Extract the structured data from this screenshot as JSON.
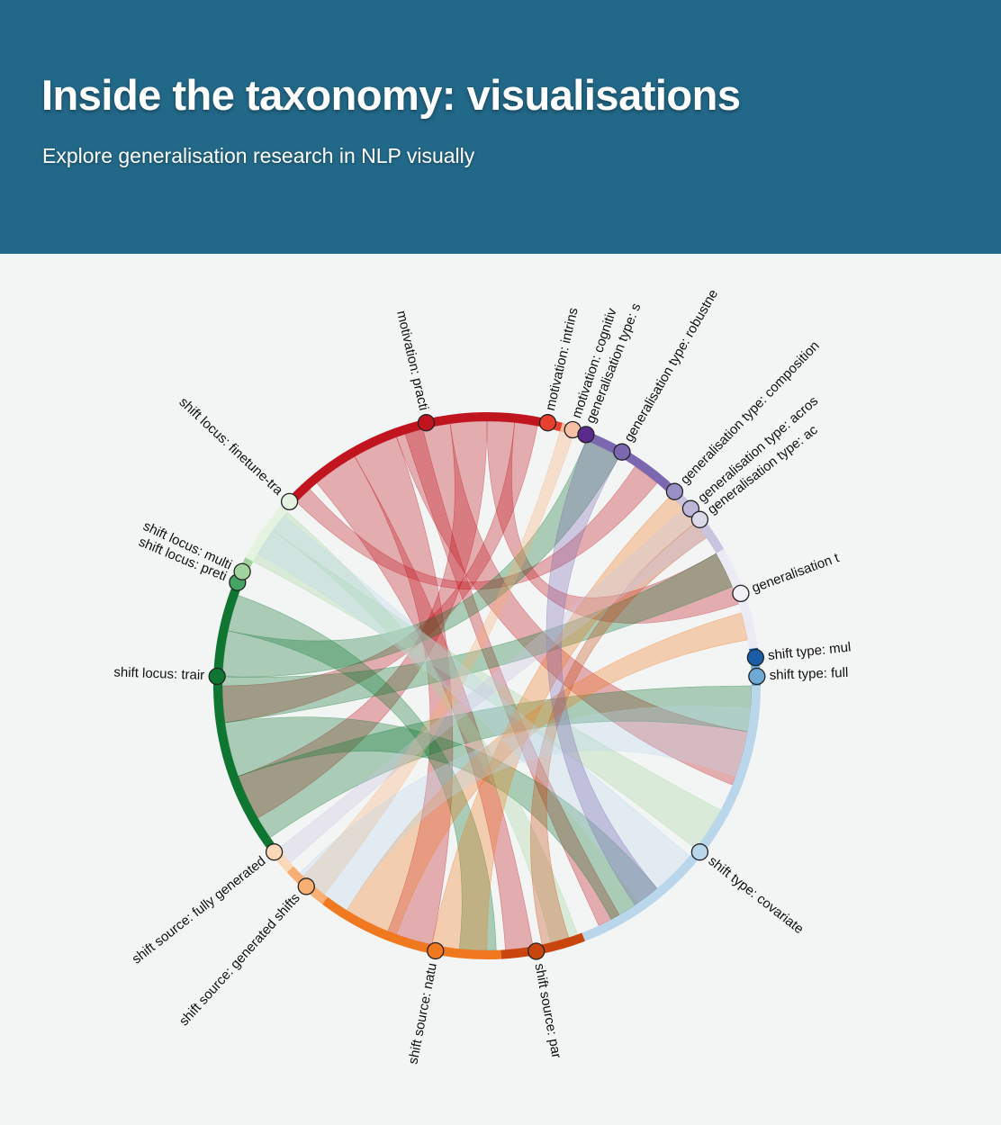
{
  "header": {
    "title": "Inside the taxonomy: visualisations",
    "subtitle": "Explore generalisation research in NLP visually"
  },
  "chord": {
    "nodes": [
      {
        "id": "practical",
        "label": "motivation: practi",
        "group": "motivation",
        "angle": -13,
        "color": "#c0151f"
      },
      {
        "id": "intrinsic",
        "label": "motivation: intrins",
        "group": "motivation",
        "angle": 13,
        "color": "#e8402e"
      },
      {
        "id": "cognitive",
        "label": "motivation: cognitiv",
        "group": "motivation",
        "angle": 18.5,
        "color": "#f6c0a6"
      },
      {
        "id": "gt-s",
        "label": "generalisation type: s",
        "group": "generalisation type",
        "angle": 21.5,
        "color": "#5b2a8e"
      },
      {
        "id": "gt-robust",
        "label": "generalisation type: robustne",
        "group": "generalisation type",
        "angle": 30,
        "color": "#7b68b1"
      },
      {
        "id": "gt-comp",
        "label": "generalisation type: composition",
        "group": "generalisation type",
        "angle": 44,
        "color": "#9a90c7"
      },
      {
        "id": "gt-across",
        "label": "generalisation type: acros",
        "group": "generalisation type",
        "angle": 49,
        "color": "#bcb6da"
      },
      {
        "id": "gt-ac",
        "label": "generalisation type: ac",
        "group": "generalisation type",
        "angle": 52,
        "color": "#dcdaea"
      },
      {
        "id": "gt-t",
        "label": "generalisation t",
        "group": "generalisation type",
        "angle": 70,
        "color": "#f2f1f7"
      },
      {
        "id": "st-mul",
        "label": "shift type: mul",
        "group": "shift type",
        "angle": 84,
        "color": "#1a5ea8"
      },
      {
        "id": "st-full",
        "label": "shift type: full",
        "group": "shift type",
        "angle": 88,
        "color": "#6faad7"
      },
      {
        "id": "st-cov",
        "label": "shift type: covariate",
        "group": "shift type",
        "angle": 128,
        "color": "#bad6ea"
      },
      {
        "id": "ss-par",
        "label": "shift source: par",
        "group": "shift source",
        "angle": 169.5,
        "color": "#c8460e"
      },
      {
        "id": "ss-nat",
        "label": "shift source: natu",
        "group": "shift source",
        "angle": 191,
        "color": "#f0781f"
      },
      {
        "id": "ss-gen",
        "label": "shift source: generated shifts",
        "group": "shift source",
        "angle": 222,
        "color": "#f9ae73"
      },
      {
        "id": "ss-fully",
        "label": "shift source: fully generated",
        "group": "shift source",
        "angle": 232,
        "color": "#fbd8b8"
      },
      {
        "id": "sl-train",
        "label": "shift locus: trair",
        "group": "shift locus",
        "angle": 272,
        "color": "#0f7632"
      },
      {
        "id": "sl-pret",
        "label": "shift locus: preti",
        "group": "shift locus",
        "angle": 292.5,
        "color": "#45a463"
      },
      {
        "id": "sl-multi",
        "label": "shift locus: multi",
        "group": "shift locus",
        "angle": 295,
        "color": "#a1d39e"
      },
      {
        "id": "sl-fine",
        "label": "shift locus: finetune-tra",
        "group": "shift locus",
        "angle": 313,
        "color": "#e3f3df"
      }
    ],
    "arcs": [
      {
        "start": -48,
        "end": 12,
        "color": "#c0151f"
      },
      {
        "start": 12,
        "end": 16,
        "color": "#e8402e"
      },
      {
        "start": 16,
        "end": 20,
        "color": "#f6b79b"
      },
      {
        "start": 20,
        "end": 44,
        "color": "#7b68b1"
      },
      {
        "start": 44,
        "end": 60,
        "color": "#c9c4e0"
      },
      {
        "start": 60,
        "end": 82,
        "color": "#eceaf3"
      },
      {
        "start": 82,
        "end": 85.5,
        "color": "#1a5ea8"
      },
      {
        "start": 85.5,
        "end": 90,
        "color": "#6faad7"
      },
      {
        "start": 90,
        "end": 159,
        "color": "#bad6ea"
      },
      {
        "start": 159,
        "end": 177,
        "color": "#c8460e"
      },
      {
        "start": 177,
        "end": 217,
        "color": "#f0781f"
      },
      {
        "start": 217,
        "end": 227,
        "color": "#f9ae73"
      },
      {
        "start": 227,
        "end": 233,
        "color": "#fbd8b8"
      },
      {
        "start": 233,
        "end": 291,
        "color": "#0f7632"
      },
      {
        "start": 291,
        "end": 294,
        "color": "#45a463"
      },
      {
        "start": 294,
        "end": 298,
        "color": "#a1d39e"
      },
      {
        "start": 298,
        "end": 312,
        "color": "#e3f3df"
      }
    ],
    "ribbons": [
      {
        "s0": -40,
        "s1": -30,
        "t0": 170,
        "t1": 176,
        "color": "#c0151f"
      },
      {
        "s0": -30,
        "s1": -20,
        "t0": 192,
        "t1": 202,
        "color": "#c0151f"
      },
      {
        "s0": -20,
        "s1": -8,
        "t0": 100,
        "t1": 112,
        "color": "#c0151f"
      },
      {
        "s0": -8,
        "s1": 0,
        "t0": 240,
        "t1": 250,
        "color": "#c0151f"
      },
      {
        "s0": 0,
        "s1": 6,
        "t0": 60,
        "t1": 72,
        "color": "#c0151f"
      },
      {
        "s0": 6,
        "s1": 11,
        "t0": 262,
        "t1": 270,
        "color": "#c0151f"
      },
      {
        "s0": -46,
        "s1": -42,
        "t0": 34,
        "t1": 40,
        "color": "#c0151f"
      },
      {
        "s0": -18,
        "s1": -14,
        "t0": 150,
        "t1": 155,
        "color": "#c0151f"
      },
      {
        "s0": 235,
        "s1": 250,
        "t0": 90,
        "t1": 100,
        "color": "#0f7632"
      },
      {
        "s0": 250,
        "s1": 262,
        "t0": 140,
        "t1": 152,
        "color": "#0f7632"
      },
      {
        "s0": 262,
        "s1": 272,
        "t0": 60,
        "t1": 68,
        "color": "#0f7632"
      },
      {
        "s0": 272,
        "s1": 282,
        "t0": 22,
        "t1": 30,
        "color": "#0f7632"
      },
      {
        "s0": 282,
        "s1": 290,
        "t0": 178,
        "t1": 186,
        "color": "#0f7632"
      },
      {
        "s0": 298,
        "s1": 306,
        "t0": 118,
        "t1": 128,
        "color": "#a1d39e"
      },
      {
        "s0": 306,
        "s1": 311,
        "t0": 160,
        "t1": 166,
        "color": "#a1d39e"
      },
      {
        "s0": 180,
        "s1": 192,
        "t0": 44,
        "t1": 52,
        "color": "#f0781f"
      },
      {
        "s0": 200,
        "s1": 212,
        "t0": 74,
        "t1": 80,
        "color": "#f0781f"
      },
      {
        "s0": 218,
        "s1": 224,
        "t0": 16,
        "t1": 19,
        "color": "#f9ae73"
      },
      {
        "s0": 162,
        "s1": 168,
        "t0": 52,
        "t1": 56,
        "color": "#c8460e"
      },
      {
        "s0": 95,
        "s1": 110,
        "t0": 212,
        "t1": 225,
        "color": "#bad6ea"
      },
      {
        "s0": 130,
        "s1": 145,
        "t0": 300,
        "t1": 310,
        "color": "#bad6ea"
      },
      {
        "s0": 22,
        "s1": 30,
        "t0": 140,
        "t1": 146,
        "color": "#7b68b1"
      },
      {
        "s0": 48,
        "s1": 56,
        "t0": 228,
        "t1": 232,
        "color": "#c9c4e0"
      }
    ]
  }
}
